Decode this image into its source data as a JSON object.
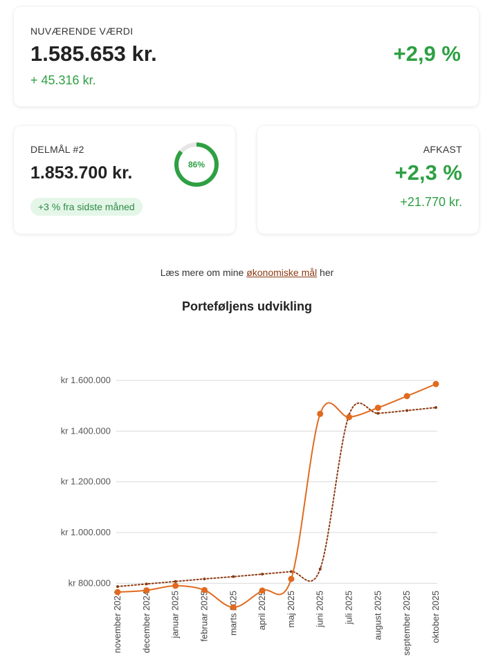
{
  "current_value": {
    "caption": "NUVÆRENDE VÆRDI",
    "amount": "1.585.653 kr.",
    "change": "+ 45.316 kr.",
    "percent": "+2,9 %"
  },
  "goal": {
    "caption": "DELMÅL #2",
    "amount": "1.853.700 kr.",
    "progress_label": "86%",
    "progress": 0.86,
    "badge": "+3 % fra sidste måned"
  },
  "return": {
    "caption": "AFKAST",
    "percent": "+2,3 %",
    "amount": "+21.770 kr."
  },
  "readmore": {
    "prefix": "Læs mere om mine ",
    "link": "økonomiske mål",
    "suffix": " her"
  },
  "chart_title": "Porteføljens udvikling",
  "colors": {
    "green": "#2ea043",
    "series_actual": "#e06a1f",
    "series_target": "#8b3a12",
    "grid": "#d9d9d9"
  },
  "chart_data": {
    "type": "line",
    "categories": [
      "november 2024",
      "december 2024",
      "januar 2025",
      "februar 2025",
      "marts 2025",
      "april 2025",
      "maj 2025",
      "juni 2025",
      "juli 2025",
      "august 2025",
      "september 2025",
      "oktober 2025"
    ],
    "y_ticks": [
      "kr 800.000",
      "kr 1.000.000",
      "kr 1.200.000",
      "kr 1.400.000",
      "kr 1.600.000"
    ],
    "y_tick_values": [
      800000,
      1000000,
      1200000,
      1400000,
      1600000
    ],
    "ylim": [
      700000,
      1600000
    ],
    "grid": true,
    "series": [
      {
        "style": "solid",
        "values": [
          765000,
          772000,
          790000,
          773000,
          705000,
          771000,
          817000,
          1468000,
          1455000,
          1492000,
          1538000,
          1585653
        ]
      },
      {
        "style": "dotted",
        "values": [
          787000,
          797000,
          807000,
          817000,
          826000,
          836000,
          846000,
          856000,
          1464000,
          1470000,
          1481000,
          1493000
        ]
      }
    ]
  }
}
